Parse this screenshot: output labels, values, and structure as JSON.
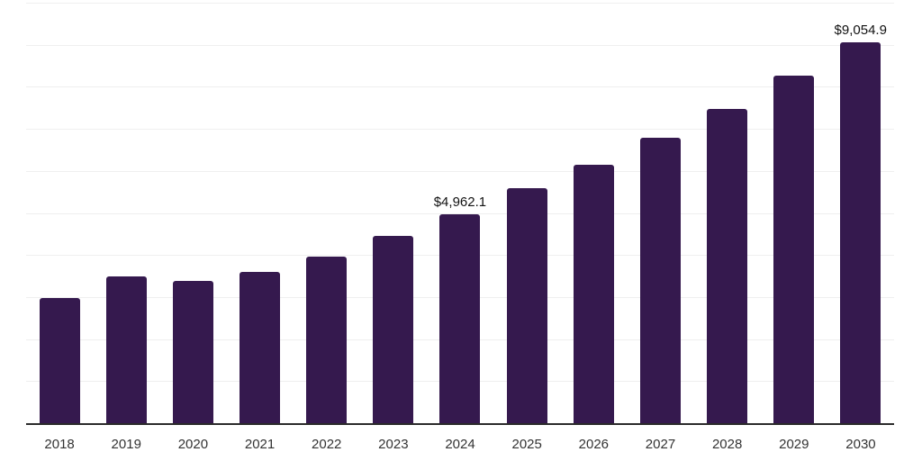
{
  "chart_data": {
    "type": "bar",
    "categories": [
      "2018",
      "2019",
      "2020",
      "2021",
      "2022",
      "2023",
      "2024",
      "2025",
      "2026",
      "2027",
      "2028",
      "2029",
      "2030"
    ],
    "values": [
      2980,
      3485,
      3390,
      3605,
      3970,
      4450,
      4962.1,
      5595,
      6155,
      6785,
      7480,
      8265,
      9054.9
    ],
    "point_labels": [
      "",
      "",
      "",
      "",
      "",
      "",
      "$4,962.1",
      "",
      "",
      "",
      "",
      "",
      "$9,054.9"
    ],
    "title": "",
    "xlabel": "",
    "ylabel": "",
    "ylim": [
      0,
      10000
    ],
    "gridline_count": 10,
    "grid": "horizontal",
    "legend": "none"
  },
  "colors": {
    "bar": "#35194e",
    "gridline": "#efefef",
    "axis_line": "#2b2b2b",
    "tick_label": "#333333",
    "data_label": "#111111",
    "background": "#ffffff"
  }
}
